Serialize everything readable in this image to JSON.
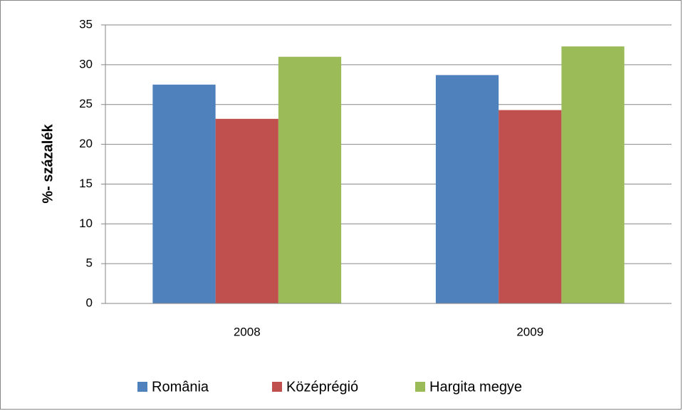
{
  "chart_data": {
    "type": "bar",
    "y_label": "%- százalék",
    "categories": [
      "2008",
      "2009"
    ],
    "series": [
      {
        "name": "România",
        "color": "#4f81bd",
        "values": [
          27.5,
          28.7
        ]
      },
      {
        "name": "Középrégió",
        "color": "#c0504d",
        "values": [
          23.2,
          24.3
        ]
      },
      {
        "name": "Hargita megye",
        "color": "#9bbb59",
        "values": [
          31.0,
          32.3
        ]
      }
    ],
    "ylim": [
      0,
      35
    ],
    "yticks": [
      0,
      5,
      10,
      15,
      20,
      25,
      30,
      35
    ],
    "grid": true,
    "legend": "bottom"
  }
}
